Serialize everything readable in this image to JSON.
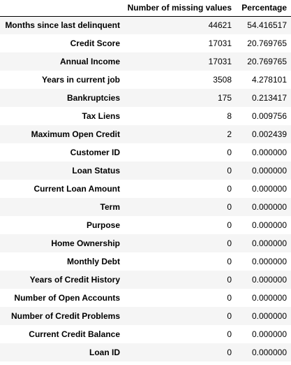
{
  "table": {
    "columns": [
      "",
      "Number of missing values",
      "Percentage"
    ],
    "rows": [
      {
        "index": "Months since last delinquent",
        "missing": "44621",
        "percentage": "54.416517"
      },
      {
        "index": "Credit Score",
        "missing": "17031",
        "percentage": "20.769765"
      },
      {
        "index": "Annual Income",
        "missing": "17031",
        "percentage": "20.769765"
      },
      {
        "index": "Years in current job",
        "missing": "3508",
        "percentage": "4.278101"
      },
      {
        "index": "Bankruptcies",
        "missing": "175",
        "percentage": "0.213417"
      },
      {
        "index": "Tax Liens",
        "missing": "8",
        "percentage": "0.009756"
      },
      {
        "index": "Maximum Open Credit",
        "missing": "2",
        "percentage": "0.002439"
      },
      {
        "index": "Customer ID",
        "missing": "0",
        "percentage": "0.000000"
      },
      {
        "index": "Loan Status",
        "missing": "0",
        "percentage": "0.000000"
      },
      {
        "index": "Current Loan Amount",
        "missing": "0",
        "percentage": "0.000000"
      },
      {
        "index": "Term",
        "missing": "0",
        "percentage": "0.000000"
      },
      {
        "index": "Purpose",
        "missing": "0",
        "percentage": "0.000000"
      },
      {
        "index": "Home Ownership",
        "missing": "0",
        "percentage": "0.000000"
      },
      {
        "index": "Monthly Debt",
        "missing": "0",
        "percentage": "0.000000"
      },
      {
        "index": "Years of Credit History",
        "missing": "0",
        "percentage": "0.000000"
      },
      {
        "index": "Number of Open Accounts",
        "missing": "0",
        "percentage": "0.000000"
      },
      {
        "index": "Number of Credit Problems",
        "missing": "0",
        "percentage": "0.000000"
      },
      {
        "index": "Current Credit Balance",
        "missing": "0",
        "percentage": "0.000000"
      },
      {
        "index": "Loan ID",
        "missing": "0",
        "percentage": "0.000000"
      }
    ]
  }
}
